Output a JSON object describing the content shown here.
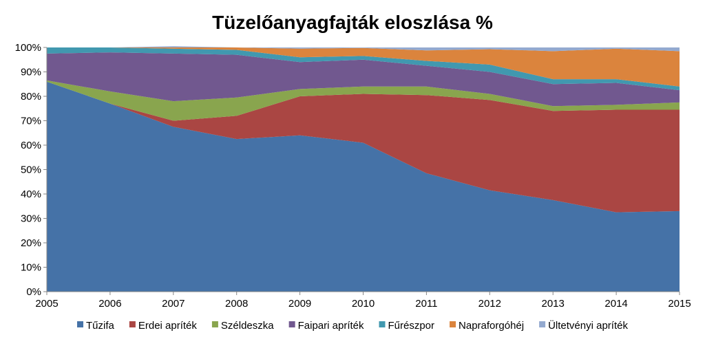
{
  "chart_data": {
    "type": "area",
    "stacked": true,
    "title": "Tüzelőanyagfajták eloszlása %",
    "xlabel": "",
    "ylabel": "",
    "x": [
      "2005",
      "2006",
      "2007",
      "2008",
      "2009",
      "2010",
      "2011",
      "2012",
      "2013",
      "2014",
      "2015"
    ],
    "ylim": [
      0,
      100
    ],
    "y_ticks": [
      "0%",
      "10%",
      "20%",
      "30%",
      "40%",
      "50%",
      "60%",
      "70%",
      "80%",
      "90%",
      "100%"
    ],
    "grid": false,
    "legend_position": "bottom",
    "series": [
      {
        "name": "Tűzifa",
        "color": "#4572A7",
        "values": [
          86,
          77,
          67.5,
          62.5,
          64,
          61,
          48.5,
          41.5,
          37.5,
          32.5,
          33
        ]
      },
      {
        "name": "Erdei apríték",
        "color": "#AA4643",
        "values": [
          0,
          0,
          2.5,
          9.5,
          16,
          20,
          32,
          37,
          36.5,
          42,
          41.5
        ]
      },
      {
        "name": "Széldeszka",
        "color": "#89A54E",
        "values": [
          0.5,
          5,
          8,
          7.5,
          3,
          3,
          3.5,
          2.5,
          2,
          2,
          3
        ]
      },
      {
        "name": "Faipari apríték",
        "color": "#71588F",
        "values": [
          11,
          16,
          19.5,
          17.5,
          11,
          11,
          8.5,
          9,
          9,
          9,
          5
        ]
      },
      {
        "name": "Fűrészpor",
        "color": "#4198AF",
        "values": [
          2.5,
          2,
          2,
          2,
          2,
          1.5,
          2,
          3,
          2,
          1.5,
          1.5
        ]
      },
      {
        "name": "Napraforgóhéj",
        "color": "#DB843D",
        "values": [
          0,
          0,
          0.5,
          1,
          3.5,
          3.3,
          4.3,
          6.3,
          11.5,
          12.5,
          14.5
        ]
      },
      {
        "name": "Ültetvényi apríték",
        "color": "#93A9CF",
        "values": [
          0,
          0,
          0.5,
          0,
          0.5,
          0.2,
          1.2,
          0.7,
          1.5,
          0.5,
          1.5
        ]
      }
    ]
  }
}
